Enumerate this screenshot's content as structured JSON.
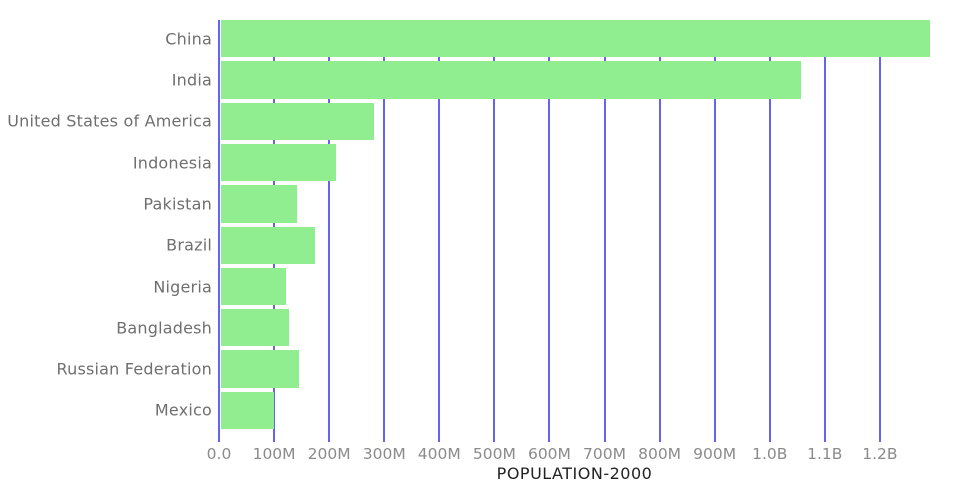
{
  "chart_data": {
    "type": "bar",
    "orientation": "horizontal",
    "title": "POPULATION-2000",
    "categories": [
      "China",
      "India",
      "United States of America",
      "Indonesia",
      "Pakistan",
      "Brazil",
      "Nigeria",
      "Bangladesh",
      "Russian Federation",
      "Mexico"
    ],
    "values_millions": [
      1291,
      1057,
      282,
      212,
      142,
      175,
      122,
      128,
      146,
      99
    ],
    "xlabel": "",
    "ylabel": "",
    "x_axis": {
      "lim_millions": [
        0,
        1291
      ],
      "grid": true,
      "ticks": [
        {
          "label": "0.0",
          "m": 0
        },
        {
          "label": "100M",
          "m": 100
        },
        {
          "label": "200M",
          "m": 200
        },
        {
          "label": "300M",
          "m": 300
        },
        {
          "label": "400M",
          "m": 400
        },
        {
          "label": "500M",
          "m": 500
        },
        {
          "label": "600M",
          "m": 600
        },
        {
          "label": "700M",
          "m": 700
        },
        {
          "label": "800M",
          "m": 800
        },
        {
          "label": "900M",
          "m": 900
        },
        {
          "label": "1.0B",
          "m": 1000
        },
        {
          "label": "1.1B",
          "m": 1100
        },
        {
          "label": "1.2B",
          "m": 1200
        }
      ]
    },
    "legend": "none",
    "colors": {
      "bar": "#90ee90",
      "gridline": "#6464f2",
      "tick_label_text": "#8b8b8b",
      "category_label_text": "#6f6f6f",
      "title_text": "#222222",
      "background": "#ffffff"
    }
  }
}
